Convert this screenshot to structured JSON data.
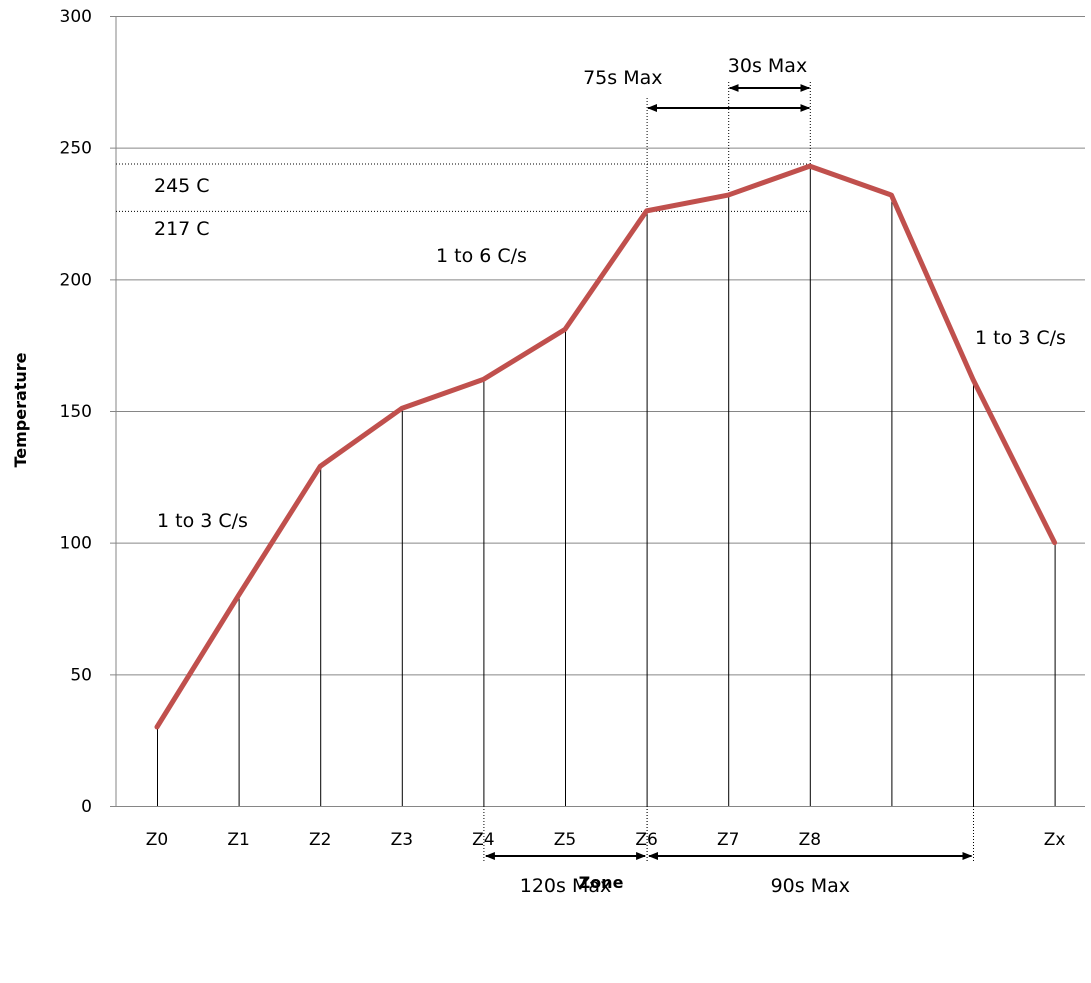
{
  "chart_data": {
    "type": "line",
    "title": "",
    "xlabel": "Zone",
    "ylabel": "Temperature",
    "ylim": [
      0,
      300
    ],
    "y_ticks": [
      0,
      50,
      100,
      150,
      200,
      250,
      300
    ],
    "grid": "horizontal",
    "legend": "none",
    "categories": [
      "Z0",
      "Z1",
      "Z2",
      "Z3",
      "Z4",
      "Z5",
      "Z6",
      "Z7",
      "Z8",
      "",
      "",
      "Zx"
    ],
    "series": [
      {
        "name": "",
        "color": "#c0504d",
        "values": [
          30,
          80,
          129,
          151,
          162,
          181,
          226,
          232,
          243,
          232,
          162,
          100
        ]
      }
    ],
    "reference_lines": [
      {
        "label": "245 C",
        "y": 244
      },
      {
        "label": "217 C",
        "y": 226
      }
    ],
    "annotations": {
      "ramp_up": "1 to 3 C/s",
      "ramp_mid": "1 to 6 C/s",
      "ramp_down": "1 to 3 C/s"
    },
    "spans": [
      {
        "label": "75s Max",
        "from": "Z6",
        "to": "Z8",
        "position": "top"
      },
      {
        "label": "30s Max",
        "from": "Z7",
        "to": "Z8",
        "position": "top"
      },
      {
        "label": "120s Max",
        "from": "Z4",
        "to": "Z6",
        "position": "bottom"
      },
      {
        "label": "90s Max",
        "from": "Z6",
        "to": "point-10",
        "position": "bottom"
      }
    ]
  }
}
